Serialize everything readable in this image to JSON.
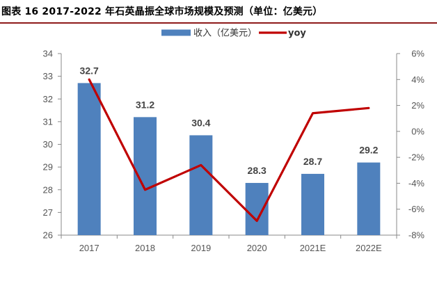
{
  "title": "图表 16 2017-2022 年石英晶振全球市场规模及预测（单位：亿美元）",
  "colors": {
    "bar": "#4f81bd",
    "line": "#c00000",
    "axis": "#888888",
    "title_rule": "#8e1b1b"
  },
  "chart_data": {
    "type": "bar",
    "categories": [
      "2017",
      "2018",
      "2019",
      "2020",
      "2021E",
      "2022E"
    ],
    "series": [
      {
        "name": "收入（亿美元）",
        "type": "bar",
        "axis": "left",
        "values": [
          32.7,
          31.2,
          30.4,
          28.3,
          28.7,
          29.2
        ]
      },
      {
        "name": "yoy",
        "type": "line",
        "axis": "right",
        "values": [
          4.0,
          -4.5,
          -2.6,
          -6.9,
          1.4,
          1.8
        ]
      }
    ],
    "data_labels": [
      "32.7",
      "31.2",
      "30.4",
      "28.3",
      "28.7",
      "29.2"
    ],
    "ylim_left": [
      26,
      34
    ],
    "yticks_left": [
      "26",
      "27",
      "28",
      "29",
      "30",
      "31",
      "32",
      "33",
      "34"
    ],
    "ylim_right": [
      -8,
      6
    ],
    "yticks_right": [
      "-8%",
      "-6%",
      "-4%",
      "-2%",
      "0%",
      "2%",
      "4%",
      "6%"
    ],
    "legend_position": "top-center",
    "grid": false
  }
}
